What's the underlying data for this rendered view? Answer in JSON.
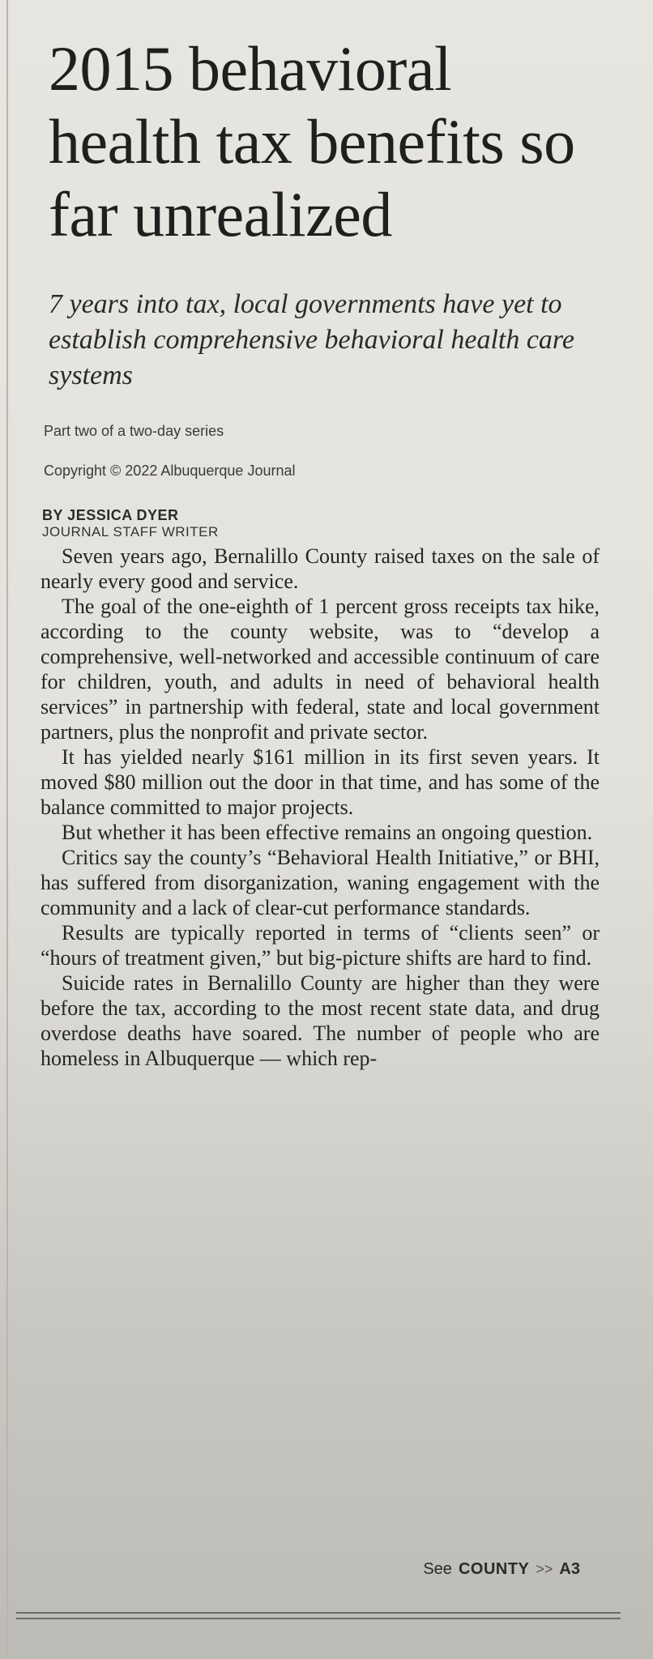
{
  "article": {
    "headline": "2015 behavioral health tax benefits so far unrealized",
    "deck": "7 years into tax, local governments have yet to establish comprehensive behavioral health care systems",
    "series_note": "Part two of a two-day series",
    "copyright": "Copyright © 2022 Albuquerque Journal",
    "byline": "BY JESSICA DYER",
    "byline_title": "JOURNAL STAFF WRITER",
    "paragraphs": [
      "Seven years ago, Bernalillo County raised taxes on the sale of nearly every good and service.",
      "The goal of the one-eighth of 1 percent gross receipts tax hike, according to the county web­site, was to “develop a comprehensive, well-networked and accessible continuum of care for children, youth, and adults in need of behav­ioral health services” in partnership with fed­eral, state and local government partners, plus the nonprofit and private sector.",
      "It has yielded nearly $161 million in its first seven years. It moved $80 million out the door in that time, and has some of the balance com­mitted to major projects.",
      "But whether it has been effective remains an ongoing question.",
      "Critics say the county’s “Behavioral Health Initiative,” or BHI, has suffered from disorga­nization, waning engagement with the com­munity and a lack of clear-cut performance standards.",
      "Results are typically reported in terms of “cli­ents seen” or “hours of treatment given,” but big-picture shifts are hard to find.",
      "Suicide rates in Bernalillo County are high­er than they were before the tax, according to the most recent state data, and drug overdose deaths have soared. The number of people who are homeless in Albuquerque — which rep-"
    ],
    "jump": {
      "see": "See",
      "slug": "COUNTY",
      "arrows": ">>",
      "page": "A3"
    }
  }
}
